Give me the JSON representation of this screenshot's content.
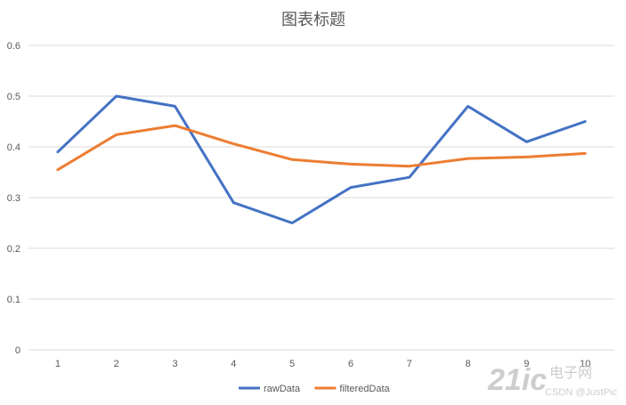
{
  "chart_data": {
    "type": "line",
    "title": "图表标题",
    "xlabel": "",
    "ylabel": "",
    "categories": [
      "1",
      "2",
      "3",
      "4",
      "5",
      "6",
      "7",
      "8",
      "9",
      "10"
    ],
    "ylim": [
      0,
      0.6
    ],
    "yticks": [
      "0",
      "0.1",
      "0.2",
      "0.3",
      "0.4",
      "0.5",
      "0.6"
    ],
    "grid": true,
    "legend_position": "bottom",
    "series": [
      {
        "name": "rawData",
        "color": "#4472C4",
        "values": [
          0.39,
          0.5,
          0.48,
          0.29,
          0.25,
          0.32,
          0.34,
          0.48,
          0.41,
          0.45
        ]
      },
      {
        "name": "filteredData",
        "color": "#ED7D31",
        "values": [
          0.355,
          0.424,
          0.442,
          0.406,
          0.375,
          0.366,
          0.362,
          0.377,
          0.38,
          0.387
        ]
      }
    ]
  },
  "watermark": {
    "logo_text": "21ic",
    "site_text": "电子网",
    "credit": "CSDN @JustPic"
  }
}
